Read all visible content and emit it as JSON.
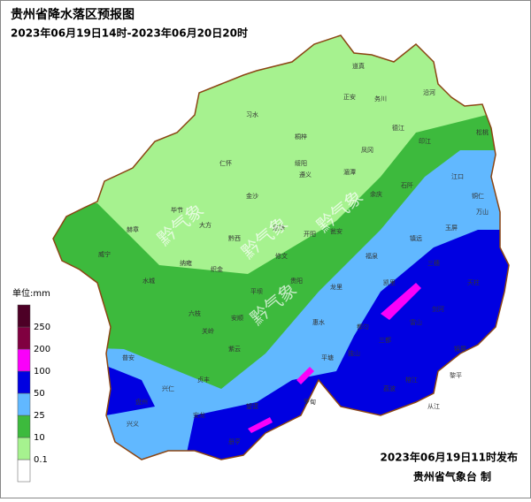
{
  "title": "贵州省降水落区预报图",
  "subtitle": "2023年06月19日14时-2023年06月20日20时",
  "legend": {
    "unit": "单位:mm",
    "colors": [
      "#ffffff",
      "#a6f28f",
      "#3dba3d",
      "#61b8ff",
      "#0000e1",
      "#fa00fa",
      "#800040",
      "#4d0026"
    ],
    "thresholds": [
      0.1,
      10,
      25,
      50,
      100,
      200,
      250
    ]
  },
  "watermark": "黔气象",
  "issued": "2023年06月19日11时发布",
  "issuer": "贵州省气象台 制",
  "places": [
    "道真",
    "正安",
    "务川",
    "沿河",
    "习水",
    "桐梓",
    "绥阳",
    "凤冈",
    "德江",
    "印江",
    "松桃",
    "遵义",
    "湄潭",
    "余庆",
    "石阡",
    "江口",
    "铜仁",
    "万山",
    "仁怀",
    "金沙",
    "毕节",
    "大方",
    "黔西",
    "开阳",
    "息烽",
    "瓮安",
    "镇远",
    "玉屏",
    "赫章",
    "纳雍",
    "织金",
    "修文",
    "贵阳",
    "龙里",
    "福泉",
    "凯里",
    "三穗",
    "天柱",
    "威宁",
    "水城",
    "六枝",
    "安顺",
    "平坝",
    "惠水",
    "都匀",
    "雷山",
    "剑河",
    "锦屏",
    "黎平",
    "从江",
    "榕江",
    "三都",
    "独山",
    "荔波",
    "平塘",
    "罗甸",
    "望谟",
    "紫云",
    "关岭",
    "普安",
    "盘州",
    "兴仁",
    "贞丰",
    "册亨",
    "安龙",
    "兴义"
  ]
}
